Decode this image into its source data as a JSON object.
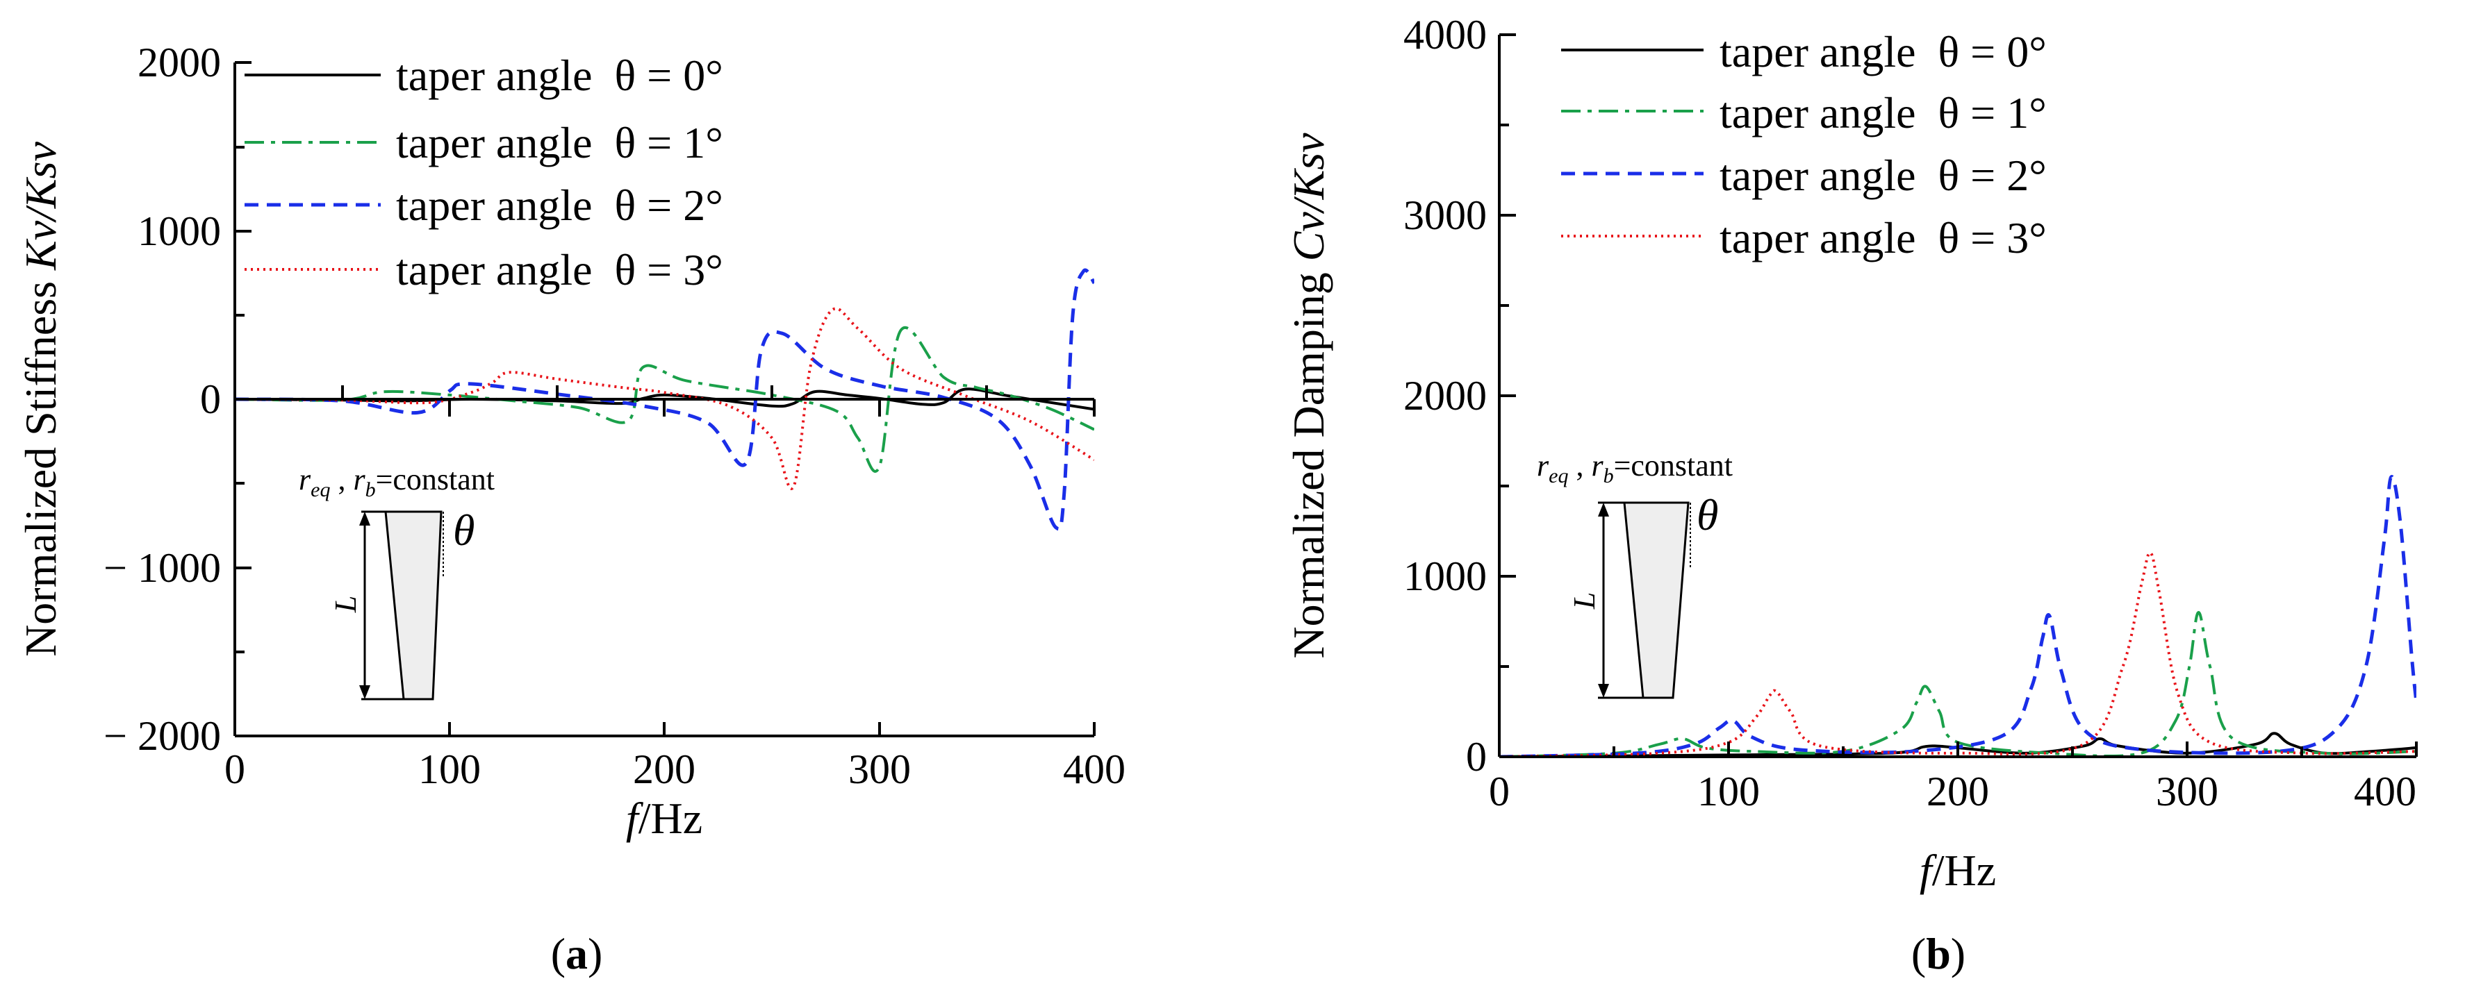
{
  "colors": {
    "series0": "#000000",
    "series1": "#1aa04a",
    "series2": "#1a2ee8",
    "series3": "#e8141a",
    "taper_fill": "#eeeeee"
  },
  "chart_data": [
    {
      "type": "line",
      "panel_label": "a",
      "xlabel_italic": "f",
      "xlabel_rest": "/Hz",
      "ylabel_prefix": "Normalized Stiffness ",
      "ylabel_italic": "Kv/Ksv",
      "xlim": [
        0,
        400
      ],
      "ylim": [
        -2000,
        2000
      ],
      "xticks": [
        0,
        100,
        200,
        300,
        400
      ],
      "xtick_labels": [
        "0",
        "100",
        "200",
        "300",
        "400"
      ],
      "yticks": [
        2000,
        1000,
        0,
        -1000,
        -2000
      ],
      "ytick_labels": [
        "2000",
        "1000",
        "0",
        "− 1000",
        "− 2000"
      ],
      "legend_position": "top-left",
      "inset": {
        "label_r": "r",
        "label_eq": "eq",
        "label_sep": " , ",
        "label_b": "b",
        "label_const": "=constant",
        "label_theta": "θ",
        "label_L": "L"
      },
      "series": [
        {
          "name": "taper angle  θ = 0°",
          "style": "solid",
          "x": [
            0,
            50,
            80,
            110,
            150,
            180,
            190,
            200,
            220,
            250,
            260,
            270,
            285,
            300,
            320,
            330,
            340,
            360,
            380,
            400
          ],
          "y": [
            0,
            -5,
            -10,
            0,
            -10,
            -25,
            5,
            25,
            5,
            -40,
            -25,
            45,
            25,
            5,
            -30,
            -20,
            60,
            20,
            -20,
            -60
          ]
        },
        {
          "name": "taper angle  θ = 1°",
          "style": "dashdot",
          "x": [
            0,
            50,
            70,
            100,
            130,
            160,
            183,
            190,
            210,
            250,
            280,
            290,
            300,
            310,
            330,
            345,
            360,
            380,
            400
          ],
          "y": [
            0,
            -5,
            45,
            25,
            -10,
            -50,
            -130,
            190,
            110,
            25,
            -70,
            -230,
            -400,
            410,
            130,
            70,
            25,
            -60,
            -180
          ]
        },
        {
          "name": "taper angle  θ = 2°",
          "style": "dashed",
          "x": [
            0,
            50,
            85,
            100,
            105,
            120,
            150,
            190,
            220,
            238,
            245,
            255,
            275,
            300,
            330,
            355,
            370,
            382,
            386,
            390,
            395,
            400
          ],
          "y": [
            0,
            -10,
            -80,
            50,
            90,
            80,
            30,
            -40,
            -140,
            -380,
            290,
            390,
            180,
            80,
            10,
            -120,
            -390,
            -760,
            -560,
            500,
            760,
            690
          ]
        },
        {
          "name": "taper angle  θ = 3°",
          "style": "dotted",
          "x": [
            0,
            50,
            90,
            110,
            120,
            128,
            150,
            180,
            200,
            230,
            250,
            260,
            268,
            278,
            290,
            310,
            340,
            370,
            400
          ],
          "y": [
            0,
            -5,
            -20,
            40,
            100,
            160,
            120,
            70,
            40,
            -40,
            -230,
            -520,
            200,
            530,
            420,
            180,
            20,
            -130,
            -360
          ]
        }
      ]
    },
    {
      "type": "line",
      "panel_label": "b",
      "xlabel_italic": "f",
      "xlabel_rest": "/Hz",
      "ylabel_prefix": "Normalized Damping ",
      "ylabel_italic": "Cv/Ksv",
      "xlim": [
        0,
        400
      ],
      "ylim": [
        0,
        4000
      ],
      "xticks": [
        0,
        100,
        200,
        300,
        400
      ],
      "xtick_labels": [
        "0",
        "100",
        "200",
        "300",
        "400"
      ],
      "yticks": [
        4000,
        3000,
        2000,
        1000,
        0
      ],
      "ytick_labels": [
        "4000",
        "3000",
        "2000",
        "1000",
        "0"
      ],
      "legend_position": "top-center",
      "inset": {
        "label_r": "r",
        "label_eq": "eq",
        "label_sep": " , ",
        "label_b": "b",
        "label_const": "=constant",
        "label_theta": "θ",
        "label_L": "L"
      },
      "series": [
        {
          "name": "taper angle  θ = 0°",
          "style": "solid",
          "x": [
            0,
            100,
            170,
            185,
            190,
            200,
            230,
            255,
            262,
            270,
            300,
            330,
            338,
            345,
            360,
            380,
            400
          ],
          "y": [
            0,
            10,
            20,
            55,
            60,
            50,
            20,
            60,
            100,
            60,
            20,
            70,
            130,
            70,
            20,
            30,
            50
          ]
        },
        {
          "name": "taper angle  θ = 1°",
          "style": "dashdot",
          "x": [
            0,
            50,
            70,
            80,
            90,
            110,
            150,
            175,
            182,
            186,
            192,
            200,
            240,
            280,
            295,
            301,
            305,
            310,
            320,
            360,
            400
          ],
          "y": [
            0,
            20,
            70,
            100,
            50,
            30,
            30,
            150,
            300,
            390,
            250,
            80,
            20,
            20,
            200,
            500,
            800,
            500,
            100,
            20,
            30
          ]
        },
        {
          "name": "taper angle  θ = 2°",
          "style": "dashed",
          "x": [
            0,
            60,
            85,
            96,
            102,
            110,
            130,
            180,
            220,
            232,
            237,
            240,
            245,
            255,
            280,
            340,
            365,
            378,
            386,
            389,
            393,
            398,
            400
          ],
          "y": [
            0,
            20,
            70,
            160,
            200,
            110,
            40,
            30,
            120,
            380,
            660,
            780,
            480,
            150,
            40,
            30,
            150,
            500,
            1200,
            1550,
            1300,
            550,
            300
          ]
        },
        {
          "name": "taper angle  θ = 3°",
          "style": "dotted",
          "x": [
            0,
            70,
            100,
            112,
            118,
            121,
            127,
            140,
            200,
            255,
            272,
            280,
            284,
            288,
            296,
            310,
            350,
            400
          ],
          "y": [
            0,
            20,
            80,
            220,
            340,
            360,
            250,
            60,
            20,
            70,
            500,
            950,
            1130,
            900,
            350,
            80,
            20,
            30
          ]
        }
      ]
    }
  ]
}
